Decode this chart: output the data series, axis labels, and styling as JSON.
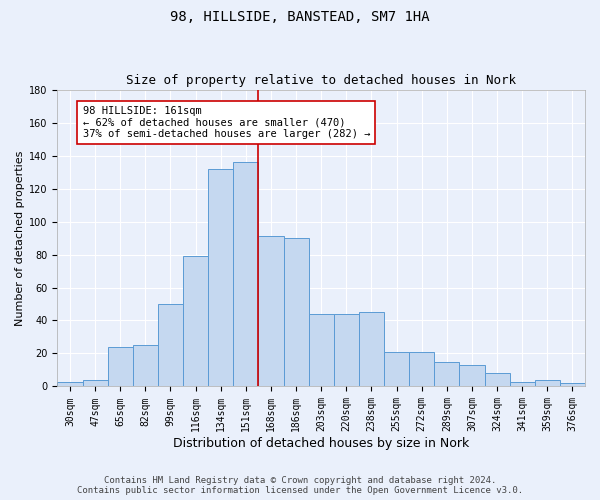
{
  "title": "98, HILLSIDE, BANSTEAD, SM7 1HA",
  "subtitle": "Size of property relative to detached houses in Nork",
  "xlabel": "Distribution of detached houses by size in Nork",
  "ylabel": "Number of detached properties",
  "footer_line1": "Contains HM Land Registry data © Crown copyright and database right 2024.",
  "footer_line2": "Contains public sector information licensed under the Open Government Licence v3.0.",
  "categories": [
    "30sqm",
    "47sqm",
    "65sqm",
    "82sqm",
    "99sqm",
    "116sqm",
    "134sqm",
    "151sqm",
    "168sqm",
    "186sqm",
    "203sqm",
    "220sqm",
    "238sqm",
    "255sqm",
    "272sqm",
    "289sqm",
    "307sqm",
    "324sqm",
    "341sqm",
    "359sqm",
    "376sqm"
  ],
  "values": [
    3,
    4,
    24,
    25,
    50,
    79,
    132,
    136,
    91,
    90,
    44,
    44,
    45,
    21,
    21,
    15,
    13,
    8,
    3,
    4,
    2
  ],
  "bar_color": "#c5d8f0",
  "bar_edge_color": "#5b9bd5",
  "bg_color": "#eaf0fb",
  "grid_color": "#ffffff",
  "annotation_text": "98 HILLSIDE: 161sqm\n← 62% of detached houses are smaller (470)\n37% of semi-detached houses are larger (282) →",
  "annotation_box_color": "#ffffff",
  "annotation_box_edge_color": "#cc0000",
  "vline_x_index": 7.5,
  "vline_color": "#cc0000",
  "ylim": [
    0,
    180
  ],
  "yticks": [
    0,
    20,
    40,
    60,
    80,
    100,
    120,
    140,
    160,
    180
  ],
  "title_fontsize": 10,
  "subtitle_fontsize": 9,
  "ylabel_fontsize": 8,
  "xlabel_fontsize": 9,
  "tick_fontsize": 7,
  "annotation_fontsize": 7.5,
  "footer_fontsize": 6.5
}
